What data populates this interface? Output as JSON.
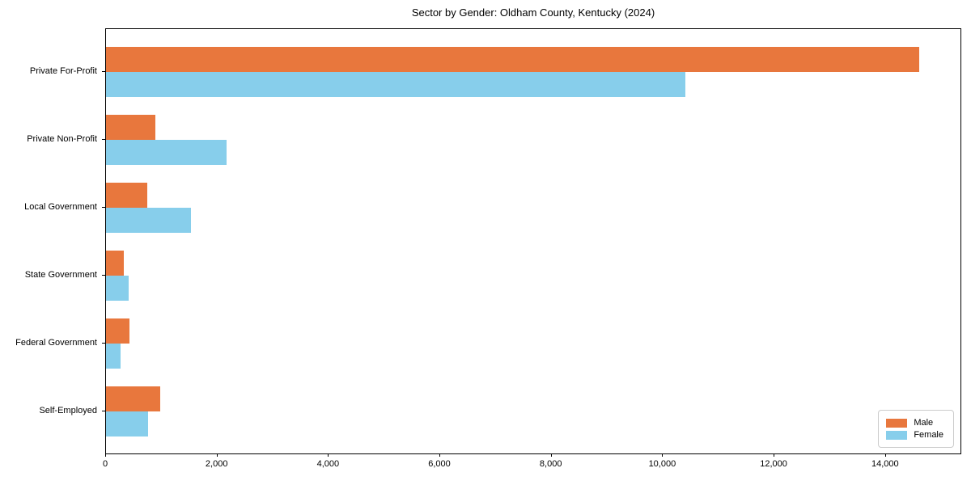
{
  "chart_data": {
    "type": "bar",
    "orientation": "horizontal",
    "title": "Sector by Gender: Oldham County, Kentucky (2024)",
    "categories": [
      "Private For-Profit",
      "Private Non-Profit",
      "Local Government",
      "State Government",
      "Federal Government",
      "Self-Employed"
    ],
    "series": [
      {
        "name": "Male",
        "color": "#e8773d",
        "values": [
          14600,
          890,
          745,
          320,
          420,
          975
        ]
      },
      {
        "name": "Female",
        "color": "#87ceeb",
        "values": [
          10400,
          2160,
          1520,
          400,
          260,
          750
        ]
      }
    ],
    "xlabel": "",
    "ylabel": "",
    "xlim": [
      0,
      15340
    ],
    "xticks": [
      0,
      2000,
      4000,
      6000,
      8000,
      10000,
      12000,
      14000
    ],
    "xtick_labels": [
      "0",
      "2,000",
      "4,000",
      "6,000",
      "8,000",
      "10,000",
      "12,000",
      "14,000"
    ],
    "grid": false,
    "legend": {
      "position": "lower right"
    },
    "frame_color": "#000000",
    "background_color": "#ffffff"
  }
}
